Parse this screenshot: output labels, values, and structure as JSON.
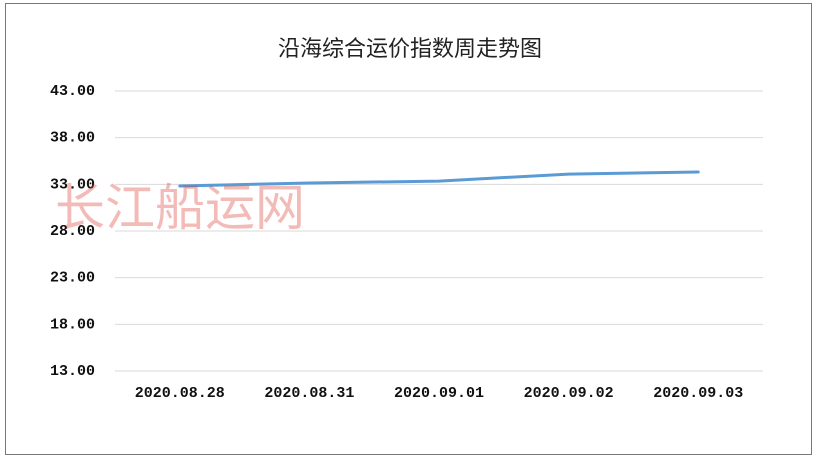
{
  "chart_data": {
    "type": "line",
    "title": "沿海综合运价指数周走势图",
    "categories": [
      "2020.08.28",
      "2020.08.31",
      "2020.09.01",
      "2020.09.02",
      "2020.09.03"
    ],
    "series": [
      {
        "name": "沿海综合运价指数",
        "color": "#5b9bd5",
        "values": [
          32.82,
          33.14,
          33.35,
          34.1,
          34.32
        ]
      }
    ],
    "ylim": [
      13,
      43
    ],
    "yticks": [
      {
        "value": 13,
        "label": "13.00"
      },
      {
        "value": 18,
        "label": "18.00"
      },
      {
        "value": 23,
        "label": "23.00"
      },
      {
        "value": 28,
        "label": "28.00"
      },
      {
        "value": 33,
        "label": "33.00"
      },
      {
        "value": 38,
        "label": "38.00"
      },
      {
        "value": 43,
        "label": "43.00"
      }
    ],
    "grid": true,
    "legend": false,
    "watermark": "长江船运网"
  }
}
